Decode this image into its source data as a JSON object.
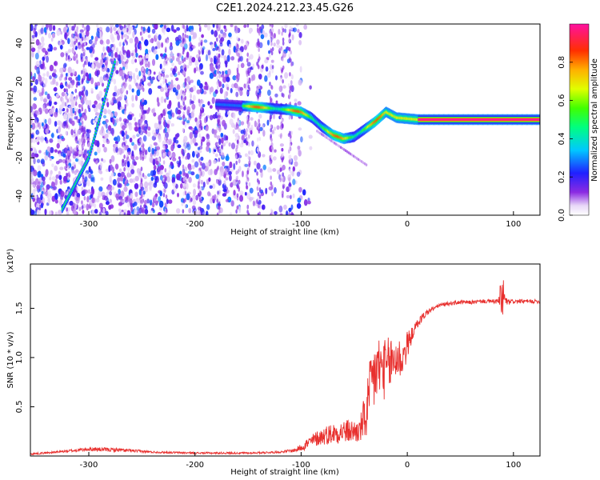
{
  "title": "C2E1.2024.212.23.45.G26",
  "chart_data": [
    {
      "type": "heatmap",
      "xlabel": "Height of straight line (km)",
      "ylabel": "Frequency (Hz)",
      "xlim": [
        -355,
        125
      ],
      "ylim": [
        -50,
        50
      ],
      "xticks": [
        -300,
        -200,
        -100,
        0,
        100
      ],
      "yticks": [
        -40,
        -20,
        0,
        20,
        40
      ],
      "colorbar": {
        "label": "Normalized spectral amplitude",
        "range": [
          0,
          1
        ],
        "ticks": [
          0.0,
          0.2,
          0.4,
          0.6,
          0.8
        ],
        "colormap": "rainbow (white/violet low → blue → cyan → green → yellow → red → magenta high)"
      },
      "features": [
        {
          "name": "steep track",
          "x": [
            -325,
            -300,
            -290,
            -283,
            -275
          ],
          "y": [
            -47,
            -20,
            0,
            15,
            31
          ]
        },
        {
          "name": "main carrier track",
          "x": [
            -180,
            -150,
            -130,
            -110,
            -100,
            -90,
            -80,
            -70,
            -60,
            -50,
            -40,
            -30,
            -20,
            -10,
            0,
            10,
            125
          ],
          "y": [
            8,
            7,
            6,
            5,
            4,
            1,
            -4,
            -8,
            -10,
            -9,
            -5,
            -1,
            4,
            1,
            0.5,
            0,
            0
          ]
        },
        {
          "name": "flat strong carrier",
          "x": [
            10,
            125
          ],
          "y": [
            0,
            0
          ],
          "amplitude": 1.0
        }
      ]
    },
    {
      "type": "line",
      "xlabel": "Height of straight line (km)",
      "ylabel": "SNR (10 * v/v)",
      "y_multiplier": "(x10⁴)",
      "xlim": [
        -355,
        125
      ],
      "ylim": [
        0,
        1.95
      ],
      "xticks": [
        -300,
        -200,
        -100,
        0,
        100
      ],
      "yticks": [
        0.5,
        1.0,
        1.5
      ],
      "ytick_labels": [
        "0.5",
        "1.0",
        "1.5"
      ],
      "color": "#e8302e",
      "series": [
        {
          "x": [
            -355,
            -330,
            -300,
            -270,
            -240,
            -200,
            -150,
            -120,
            -105,
            -95,
            -85,
            -75,
            -60,
            -45,
            -38,
            -33,
            -28,
            -20,
            -15,
            -10,
            -5,
            0,
            5,
            10,
            15,
            20,
            25,
            30,
            40,
            50,
            60,
            70,
            80,
            86,
            90,
            92,
            95,
            100,
            110,
            125
          ],
          "y": [
            0.02,
            0.04,
            0.07,
            0.06,
            0.04,
            0.03,
            0.03,
            0.04,
            0.06,
            0.12,
            0.18,
            0.22,
            0.25,
            0.25,
            0.45,
            0.75,
            0.9,
            0.88,
            0.95,
            1.0,
            0.98,
            1.12,
            1.25,
            1.35,
            1.42,
            1.47,
            1.5,
            1.53,
            1.55,
            1.56,
            1.56,
            1.57,
            1.57,
            1.57,
            1.62,
            1.58,
            1.56,
            1.57,
            1.57,
            1.57
          ],
          "noise_amplitude": [
            0.01,
            0.01,
            0.02,
            0.02,
            0.01,
            0.01,
            0.01,
            0.01,
            0.02,
            0.06,
            0.08,
            0.1,
            0.12,
            0.12,
            0.3,
            0.4,
            0.35,
            0.3,
            0.3,
            0.25,
            0.2,
            0.15,
            0.06,
            0.05,
            0.04,
            0.03,
            0.02,
            0.02,
            0.02,
            0.02,
            0.02,
            0.02,
            0.02,
            0.03,
            0.35,
            0.05,
            0.03,
            0.02,
            0.02,
            0.02
          ]
        }
      ]
    }
  ]
}
